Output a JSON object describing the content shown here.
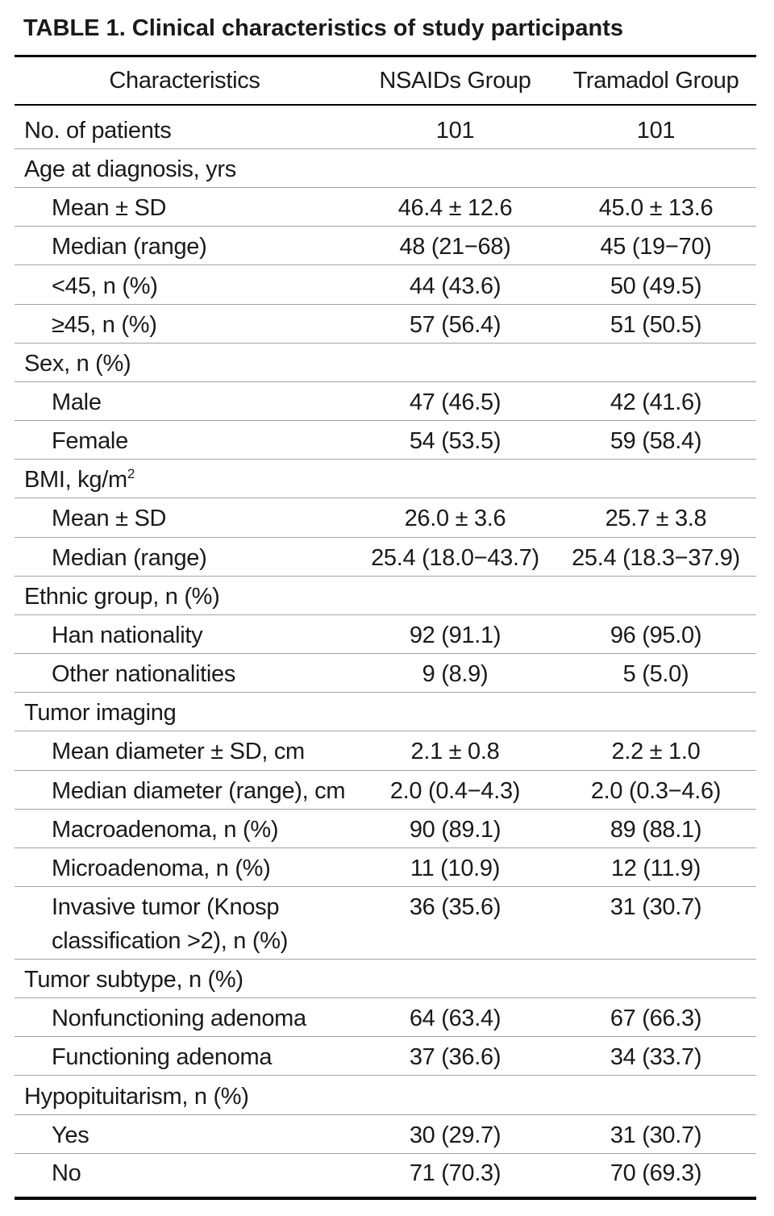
{
  "title": "TABLE 1. Clinical characteristics of study participants",
  "header": {
    "characteristics": "Characteristics",
    "nsaids": "NSAIDs Group",
    "tramadol": "Tramadol Group"
  },
  "rows": [
    {
      "label": "No. of patients",
      "nsaids": "101",
      "tramadol": "101"
    },
    {
      "label": "Age at diagnosis, yrs"
    },
    {
      "label": "Mean ± SD",
      "nsaids": "46.4 ± 12.6",
      "tramadol": "45.0 ± 13.6"
    },
    {
      "label": "Median (range)",
      "nsaids": "48 (21−68)",
      "tramadol": "45 (19−70)"
    },
    {
      "label": "<45, n (%)",
      "nsaids": "44 (43.6)",
      "tramadol": "50 (49.5)"
    },
    {
      "label": "≥45, n (%)",
      "nsaids": "57 (56.4)",
      "tramadol": "51 (50.5)"
    },
    {
      "label": "Sex, n (%)"
    },
    {
      "label": "Male",
      "nsaids": "47 (46.5)",
      "tramadol": "42 (41.6)"
    },
    {
      "label": "Female",
      "nsaids": "54 (53.5)",
      "tramadol": "59 (58.4)"
    },
    {
      "label": "BMI, kg/m",
      "sup": "2"
    },
    {
      "label": "Mean ± SD",
      "nsaids": "26.0 ± 3.6",
      "tramadol": "25.7 ± 3.8"
    },
    {
      "label": "Median (range)",
      "nsaids": "25.4 (18.0−43.7)",
      "tramadol": "25.4 (18.3−37.9)"
    },
    {
      "label": "Ethnic group, n (%)"
    },
    {
      "label": "Han nationality",
      "nsaids": "92 (91.1)",
      "tramadol": "96 (95.0)"
    },
    {
      "label": "Other nationalities",
      "nsaids": "9 (8.9)",
      "tramadol": "5 (5.0)"
    },
    {
      "label": "Tumor imaging"
    },
    {
      "label": "Mean diameter ± SD, cm",
      "nsaids": "2.1 ± 0.8",
      "tramadol": "2.2 ± 1.0"
    },
    {
      "label": "Median diameter (range), cm",
      "nsaids": "2.0 (0.4−4.3)",
      "tramadol": "2.0 (0.3−4.6)"
    },
    {
      "label": "Macroadenoma, n (%)",
      "nsaids": "90 (89.1)",
      "tramadol": "89 (88.1)"
    },
    {
      "label": "Microadenoma, n (%)",
      "nsaids": "11 (10.9)",
      "tramadol": "12 (11.9)"
    },
    {
      "label": "Invasive tumor (Knosp classification >2), n (%)",
      "nsaids": "36 (35.6)",
      "tramadol": "31 (30.7)"
    },
    {
      "label": "Tumor subtype, n (%)"
    },
    {
      "label": "Nonfunctioning adenoma",
      "nsaids": "64 (63.4)",
      "tramadol": "67 (66.3)"
    },
    {
      "label": "Functioning adenoma",
      "nsaids": "37 (36.6)",
      "tramadol": "34 (33.7)"
    },
    {
      "label": "Hypopituitarism, n (%)"
    },
    {
      "label": "Yes",
      "nsaids": "30 (29.7)",
      "tramadol": "31 (30.7)"
    },
    {
      "label": "No",
      "nsaids": "71 (70.3)",
      "tramadol": "70 (69.3)"
    }
  ],
  "colors": {
    "text": "#1a1a1a",
    "rule": "#000000",
    "row_divider": "#a3a3a3",
    "background": "#ffffff"
  }
}
